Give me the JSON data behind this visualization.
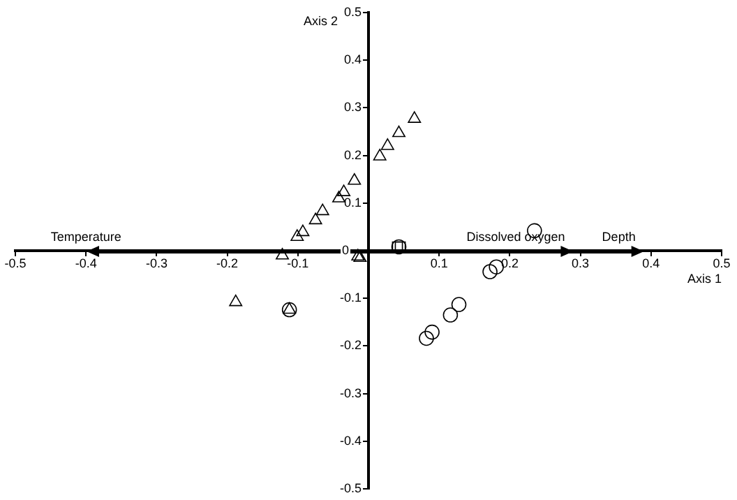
{
  "chart_data": {
    "type": "scatter",
    "xlabel": "Axis 1",
    "ylabel": "Axis 2",
    "xlim": [
      -0.5,
      0.5
    ],
    "ylim": [
      -0.5,
      0.5
    ],
    "xticks": [
      -0.5,
      -0.4,
      -0.3,
      -0.2,
      -0.1,
      {
        "value": 0,
        "label": null
      },
      0.1,
      0.2,
      0.3,
      0.4,
      0.5
    ],
    "yticks": [
      -0.5,
      -0.4,
      -0.3,
      -0.2,
      -0.1,
      0,
      0.1,
      0.2,
      0.3,
      0.4,
      0.5
    ],
    "grid": false,
    "legend": false,
    "annotations": [
      "Temperature",
      "Dissolved oxygen",
      "Depth"
    ],
    "series": [
      {
        "marker": "triangle",
        "color": "#000000",
        "x": [
          0.065,
          0.043,
          0.027,
          0.016,
          -0.02,
          -0.035,
          -0.042,
          -0.065,
          -0.075,
          -0.093,
          -0.101,
          -0.122,
          -0.015,
          -0.012,
          -0.188,
          -0.112
        ],
        "values": [
          0.277,
          0.247,
          0.22,
          0.198,
          0.147,
          0.123,
          0.11,
          0.083,
          0.064,
          0.039,
          0.029,
          -0.01,
          -0.012,
          -0.015,
          -0.108,
          -0.124
        ]
      },
      {
        "marker": "circle",
        "color": "#000000",
        "x": [
          0.235,
          0.181,
          0.172,
          0.128,
          0.116,
          0.09,
          0.082,
          -0.112,
          0.043
        ],
        "values": [
          0.042,
          -0.034,
          -0.044,
          -0.113,
          -0.135,
          -0.171,
          -0.184,
          -0.124,
          0.008
        ]
      },
      {
        "marker": "square",
        "color": "#000000",
        "x": [
          0.041,
          0.045
        ],
        "values": [
          0.008,
          0.008
        ]
      }
    ]
  }
}
